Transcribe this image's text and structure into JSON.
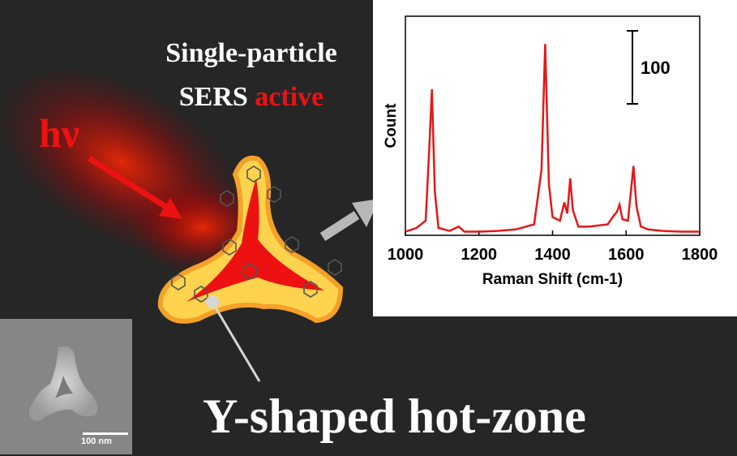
{
  "heading": {
    "line1": "Single-particle",
    "line2_white": "SERS ",
    "line2_red": "active"
  },
  "light_label": "hν",
  "caption": "Y-shaped hot-zone",
  "inset": {
    "scale_bar_label": "100 nm"
  },
  "colors": {
    "background": "#262626",
    "accent_red": "#ee1111",
    "spectrum": "#e61717",
    "glow_yellow": "#ffd34d"
  },
  "chart_data": {
    "type": "line",
    "xlabel": "Raman Shift (cm-1)",
    "ylabel": "Count",
    "xlim": [
      1000,
      1800
    ],
    "xticks": [
      1000,
      1200,
      1400,
      1600,
      1800
    ],
    "scale_bar_label": "100",
    "scale_bar_value": 100,
    "ylim": [
      0,
      300
    ],
    "series": [
      {
        "x": [
          1000,
          1030,
          1055,
          1065,
          1072,
          1080,
          1090,
          1120,
          1145,
          1160,
          1200,
          1250,
          1300,
          1350,
          1370,
          1380,
          1390,
          1400,
          1420,
          1432,
          1440,
          1448,
          1455,
          1470,
          1500,
          1550,
          1568,
          1575,
          1582,
          1590,
          1605,
          1620,
          1628,
          1640,
          1660,
          1700,
          1750,
          1800
        ],
        "y": [
          5,
          10,
          20,
          120,
          200,
          60,
          10,
          6,
          12,
          5,
          5,
          6,
          8,
          15,
          90,
          262,
          70,
          25,
          20,
          45,
          30,
          78,
          35,
          12,
          12,
          15,
          28,
          32,
          42,
          22,
          20,
          95,
          40,
          12,
          8,
          6,
          5,
          5
        ]
      }
    ]
  }
}
